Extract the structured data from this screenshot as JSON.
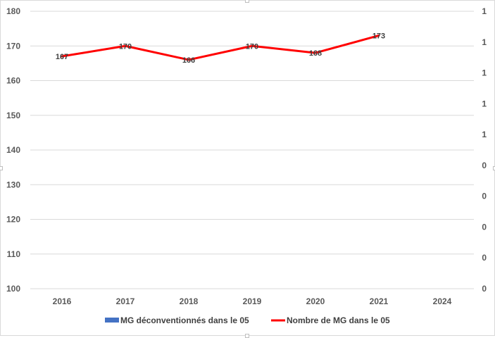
{
  "chart_data": {
    "type": "line",
    "categories": [
      "2016",
      "2017",
      "2018",
      "2019",
      "2020",
      "2021",
      "2024"
    ],
    "series": [
      {
        "name": "MG déconventionnés dans le 05",
        "type": "bar",
        "axis": "secondary",
        "values": [
          null,
          null,
          null,
          null,
          null,
          null,
          null
        ],
        "color": "#4472c4"
      },
      {
        "name": "Nombre de MG dans le 05",
        "type": "line",
        "axis": "primary",
        "values": [
          167,
          170,
          166,
          170,
          168,
          173,
          null
        ],
        "data_labels": [
          "167",
          "170",
          "166",
          "170",
          "168",
          "173"
        ],
        "color": "#ff0000"
      }
    ],
    "ylim": [
      100,
      180
    ],
    "y_ticks": [
      "100",
      "110",
      "120",
      "130",
      "140",
      "150",
      "160",
      "170",
      "180"
    ],
    "y2_ticks": [
      "0",
      "0",
      "0",
      "0",
      "0",
      "1",
      "1",
      "1",
      "1",
      "1"
    ],
    "grid": true,
    "legend": "bottom",
    "title": "",
    "xlabel": "",
    "ylabel": ""
  }
}
